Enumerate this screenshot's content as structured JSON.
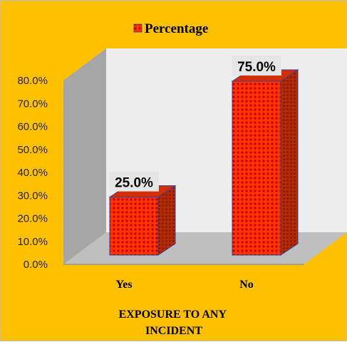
{
  "chart_data": {
    "type": "bar",
    "title": "",
    "legend": {
      "entries": [
        "Percentage"
      ],
      "position": "top"
    },
    "categories": [
      "Yes",
      "No"
    ],
    "series": [
      {
        "name": "Percentage",
        "values": [
          25.0,
          75.0
        ]
      }
    ],
    "data_labels": [
      "25.0%",
      "75.0%"
    ],
    "xlabel": "EXPOSURE TO ANY INCIDENT",
    "ylabel": "",
    "ylim": [
      0,
      80
    ],
    "y_ticks": [
      "0.0%",
      "10.0%",
      "20.0%",
      "30.0%",
      "40.0%",
      "50.0%",
      "60.0%",
      "70.0%",
      "80.0%"
    ],
    "grid": false,
    "style": "3d-column"
  },
  "colors": {
    "background": "#FFC000",
    "plot_back_wall": "#EDEDED",
    "side_wall": "#A6A6A6",
    "floor": "#BFBFBF",
    "bar_front": "#FF3300",
    "bar_pattern": "#C00000",
    "bar_side": "#B52A00",
    "bar_edge": "#3A3F99",
    "label_box": "#E7E6E6"
  }
}
